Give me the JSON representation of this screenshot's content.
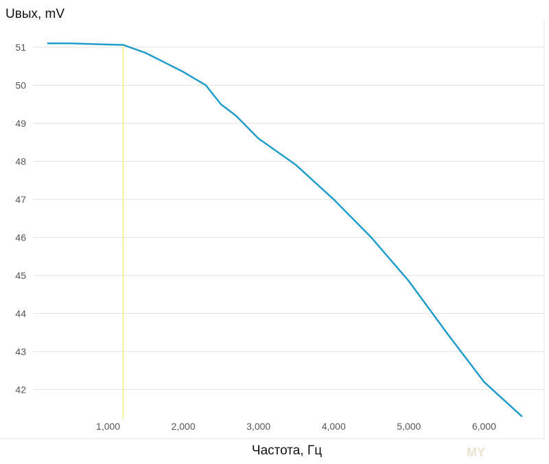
{
  "chart_data": {
    "type": "line",
    "title": "",
    "ylabel": "Uвых,  mV",
    "xlabel": "Частота,  Гц",
    "xlim": [
      0,
      6800
    ],
    "ylim": [
      41.25,
      51.7
    ],
    "x_ticks": [
      1000,
      2000,
      3000,
      4000,
      5000,
      6000
    ],
    "x_tick_labels": [
      "1,000",
      "2,000",
      "3,000",
      "4,000",
      "5,000",
      "6,000"
    ],
    "y_ticks": [
      42,
      43,
      44,
      45,
      46,
      47,
      48,
      49,
      50,
      51
    ],
    "y_tick_labels": [
      "42",
      "43",
      "44",
      "45",
      "46",
      "47",
      "48",
      "49",
      "50",
      "51"
    ],
    "grid": true,
    "series": [
      {
        "color": "#1f9cc9",
        "x": [
          200,
          500,
          1000,
          1200,
          1500,
          2000,
          2300,
          2500,
          2700,
          3000,
          3500,
          4000,
          4500,
          5000,
          5500,
          6000,
          6500
        ],
        "y": [
          51.1,
          51.1,
          51.07,
          51.06,
          50.85,
          50.35,
          50.0,
          49.5,
          49.2,
          48.6,
          47.9,
          47.0,
          46.0,
          44.85,
          43.5,
          42.2,
          41.3
        ]
      }
    ],
    "vertical_marker": {
      "x": 1200,
      "color": "#f5f07a"
    }
  },
  "watermark": {
    "text": "MY"
  }
}
